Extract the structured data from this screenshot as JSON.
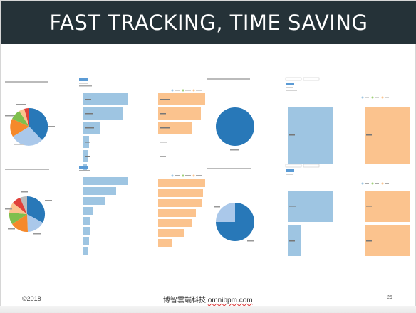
{
  "header": {
    "title": "FAST TRACKING, TIME SAVING"
  },
  "footer": {
    "copyright": "©2018",
    "company": "博智雲端科技",
    "url": "omnibpm.com",
    "page_number": "25"
  },
  "colors": {
    "header_bg": "#253238",
    "blue_dark": "#2878b8",
    "blue_light": "#9ec5e2",
    "orange": "#fbc38e",
    "green": "#9fd076",
    "red": "#e0403a"
  }
}
